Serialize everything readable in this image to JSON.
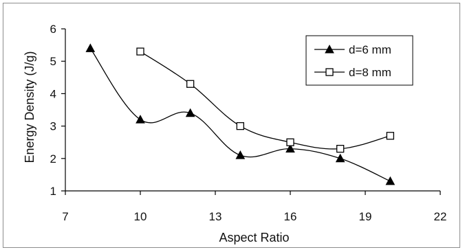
{
  "chart_data": {
    "type": "line",
    "xlabel": "Aspect Ratio",
    "ylabel": "Energy Density (J/g)",
    "xlim": [
      7,
      22
    ],
    "ylim": [
      1,
      6
    ],
    "xticks": [
      7,
      10,
      13,
      16,
      19,
      22
    ],
    "yticks": [
      1,
      2,
      3,
      4,
      5,
      6
    ],
    "grid": false,
    "legend_position": "top-right",
    "series": [
      {
        "name": "d=6 mm",
        "marker": "filled-triangle",
        "color": "#000000",
        "x": [
          8,
          10,
          12,
          14,
          16,
          18,
          20
        ],
        "y": [
          5.4,
          3.2,
          3.4,
          2.1,
          2.3,
          2.0,
          1.3
        ]
      },
      {
        "name": "d=8 mm",
        "marker": "open-square",
        "color": "#000000",
        "x": [
          10,
          12,
          14,
          16,
          18,
          20
        ],
        "y": [
          5.3,
          4.3,
          3.0,
          2.5,
          2.3,
          2.7
        ]
      }
    ]
  }
}
